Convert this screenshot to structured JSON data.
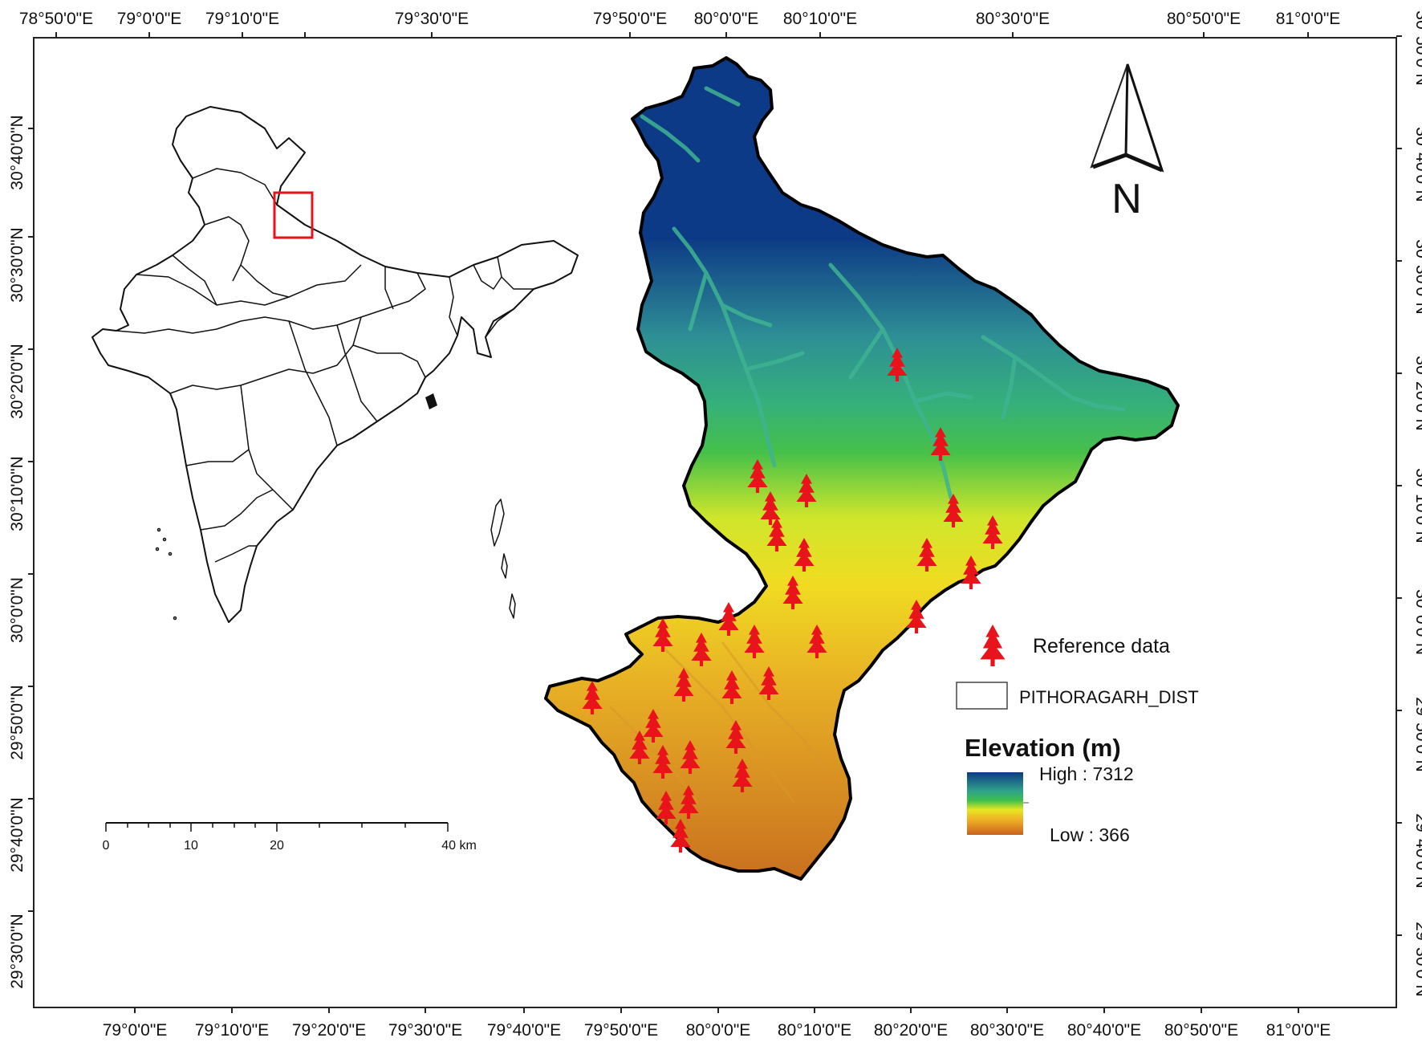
{
  "map": {
    "top_ticks": [
      "78°50'0\"E",
      "79°0'0\"E",
      "79°10'0\"E",
      "79°30'0\"E",
      "79°50'0\"E",
      "80°0'0\"E",
      "80°10'0\"E",
      "80°30'0\"E",
      "80°50'0\"E",
      "81°0'0\"E"
    ],
    "bottom_ticks": [
      "79°0'0\"E",
      "79°10'0\"E",
      "79°20'0\"E",
      "79°30'0\"E",
      "79°40'0\"E",
      "79°50'0\"E",
      "80°0'0\"E",
      "80°10'0\"E",
      "80°20'0\"E",
      "80°30'0\"E",
      "80°40'0\"E",
      "80°50'0\"E",
      "81°0'0\"E"
    ],
    "left_ticks": [
      "30°40'0\"N",
      "30°30'0\"N",
      "30°20'0\"N",
      "30°10'0\"N",
      "30°0'0\"N",
      "29°50'0\"N",
      "29°40'0\"N",
      "29°30'0\"N"
    ],
    "right_ticks": [
      "30°50'0\"N",
      "30°40'0\"N",
      "30°30'0\"N",
      "30°20'0\"N",
      "30°10'0\"N",
      "30°0'0\"N",
      "29°50'0\"N",
      "29°40'0\"N",
      "29°30'0\"N"
    ]
  },
  "north_arrow": {
    "label": "N"
  },
  "legend": {
    "reference_label": "Reference data",
    "district_label": "PITHORAGARH_DIST",
    "elevation_title": "Elevation (m)",
    "high_label": "High : 7312",
    "low_label": "Low : 366"
  },
  "scale_bar": {
    "labels": [
      "0",
      "10",
      "20",
      "40 km"
    ]
  },
  "colors": {
    "high_elevation": "#0d3a86",
    "mid_elevation": "#2fae7a",
    "green": "#39b54a",
    "yellow": "#f2e21e",
    "low_elevation": "#c86a1e",
    "marker": "#e8131b",
    "inset_box": "#e8131b"
  }
}
